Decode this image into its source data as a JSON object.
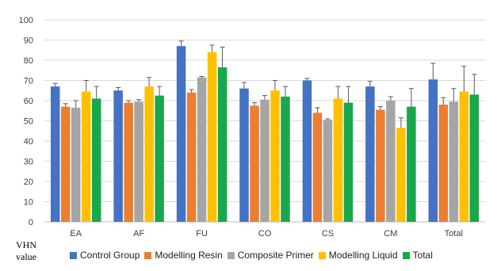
{
  "chart_data": {
    "type": "bar",
    "categories": [
      "EA",
      "AF",
      "FU",
      "CO",
      "CS",
      "CM",
      "Total"
    ],
    "ylim": [
      0,
      100
    ],
    "yticks": [
      0,
      10,
      20,
      30,
      40,
      50,
      60,
      70,
      80,
      90,
      100
    ],
    "ylabel_line1": "VHN",
    "ylabel_line2": "value",
    "xlabel": "",
    "title": "",
    "grid": true,
    "legend_placement": "bottom",
    "series": [
      {
        "name": "Control Group",
        "color": "#4472C4",
        "values": [
          67,
          65,
          87,
          66,
          70,
          67,
          70.5
        ],
        "errors": [
          1.5,
          1.5,
          2.5,
          3,
          1,
          2.5,
          8
        ]
      },
      {
        "name": "Modelling Resin",
        "color": "#ED7D31",
        "values": [
          57,
          59,
          64,
          57.5,
          54,
          55.5,
          58
        ],
        "errors": [
          1.5,
          1,
          1.5,
          1.5,
          2.5,
          1.5,
          3.5
        ]
      },
      {
        "name": "Composite Primer",
        "color": "#A5A5A5",
        "values": [
          56.5,
          59.5,
          71.5,
          60.5,
          50.5,
          60,
          59.5
        ],
        "errors": [
          3.5,
          1,
          0.5,
          2,
          0.5,
          2,
          6.5
        ]
      },
      {
        "name": "Modelling Liquid",
        "color": "#FFC000",
        "values": [
          64.5,
          67,
          84,
          65,
          61,
          46.5,
          64.5
        ],
        "errors": [
          5.5,
          4.5,
          3.5,
          5,
          6,
          5,
          12.5
        ]
      },
      {
        "name": "Total",
        "color": "#18A84B",
        "values": [
          61,
          62.5,
          76.5,
          62,
          59,
          57,
          63
        ],
        "errors": [
          6,
          4.5,
          10,
          5,
          8,
          9,
          10
        ]
      }
    ]
  }
}
